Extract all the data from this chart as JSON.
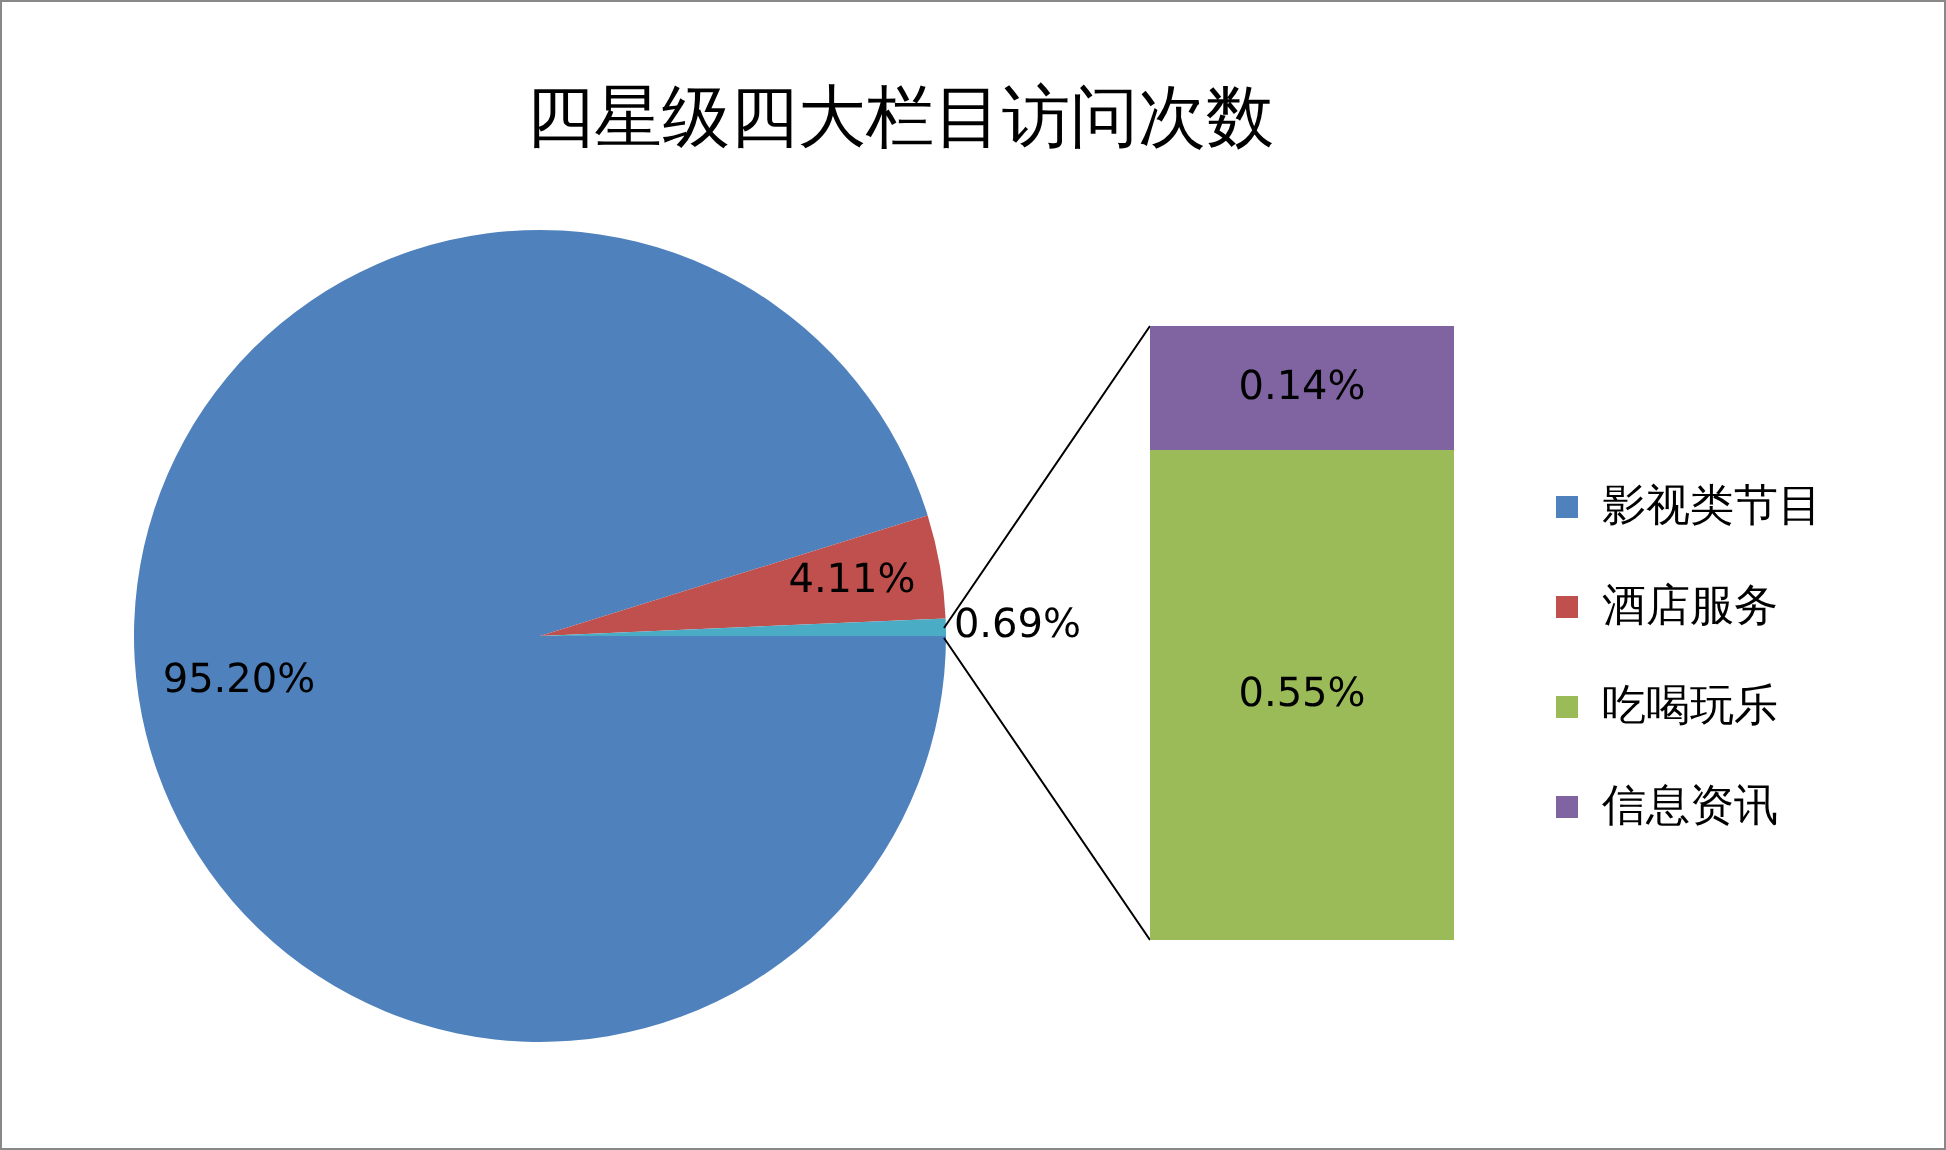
{
  "chart_data": [
    {
      "type": "pie",
      "title": "四星级四大栏目访问次数",
      "categories": [
        "影视类节目",
        "酒店服务",
        null
      ],
      "values": [
        95.2,
        4.11,
        0.69
      ],
      "colors": [
        "#4f81bd",
        "#c0504d",
        "#4bacc6"
      ],
      "value_labels": [
        "95.20%",
        "4.11%",
        "0.69%"
      ],
      "legend": "right"
    },
    {
      "type": "bar",
      "stacked": true,
      "categories": [
        null
      ],
      "tick_labels": false,
      "legend": "right",
      "series": [
        {
          "name": "吃喝玩乐",
          "color": "#9bbb59",
          "values": [
            0.55
          ],
          "value_labels": [
            "0.55%"
          ]
        },
        {
          "name": "信息资讯",
          "color": "#8064a2",
          "values": [
            0.14
          ],
          "value_labels": [
            "0.14%"
          ]
        }
      ]
    }
  ]
}
